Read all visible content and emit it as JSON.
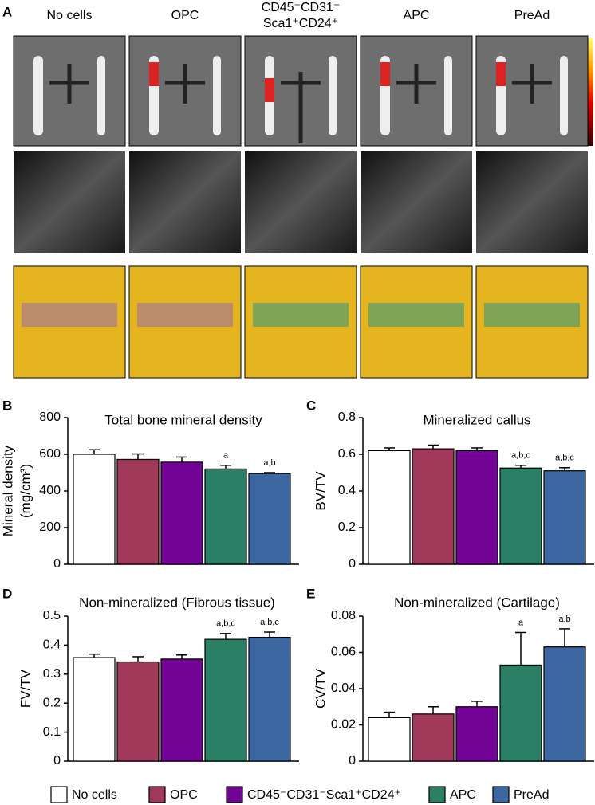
{
  "panel_labels": [
    "A",
    "B",
    "C",
    "D",
    "E"
  ],
  "panel_a": {
    "columns": [
      {
        "lines": [
          "No cells"
        ]
      },
      {
        "lines": [
          "OPC"
        ]
      },
      {
        "lines": [
          "CD45⁻CD31⁻",
          "Sca1⁺CD24⁺"
        ]
      },
      {
        "lines": [
          "APC"
        ]
      },
      {
        "lines": [
          "PreAd"
        ]
      }
    ]
  },
  "legend": [
    {
      "name": "No cells",
      "color": "#ffffff"
    },
    {
      "name": "OPC",
      "color": "#a0395a"
    },
    {
      "name": "CD45⁻CD31⁻Sca1⁺CD24⁺",
      "color": "#720396"
    },
    {
      "name": "APC",
      "color": "#2b7f64"
    },
    {
      "name": "PreAd",
      "color": "#3d67a1"
    }
  ],
  "chart_data": [
    {
      "type": "bar",
      "title": "Total bone mineral density",
      "ylabel": [
        "Mineral density",
        "(mg/cm³)"
      ],
      "categories": [
        null,
        null,
        null,
        null,
        null
      ],
      "values": [
        600,
        572,
        557,
        520,
        495
      ],
      "errors": [
        25,
        30,
        28,
        20,
        5
      ],
      "bar_labels": [
        null,
        null,
        null,
        "a",
        "a,b"
      ],
      "ylim": [
        0,
        800
      ],
      "yticks": [
        0,
        200,
        400,
        600,
        800
      ]
    },
    {
      "type": "bar",
      "title": "Mineralized callus",
      "ylabel": [
        "BV/TV"
      ],
      "categories": [
        null,
        null,
        null,
        null,
        null
      ],
      "values": [
        0.62,
        0.63,
        0.62,
        0.525,
        0.51
      ],
      "errors": [
        0.015,
        0.02,
        0.015,
        0.015,
        0.017
      ],
      "bar_labels": [
        null,
        null,
        null,
        "a,b,c",
        "a,b,c"
      ],
      "ylim": [
        0,
        0.8
      ],
      "yticks": [
        0,
        0.2,
        0.4,
        0.6,
        0.8
      ]
    },
    {
      "type": "bar",
      "title": "Non-mineralized (Fibrous tissue)",
      "ylabel": [
        "FV/TV"
      ],
      "categories": [
        null,
        null,
        null,
        null,
        null
      ],
      "values": [
        0.357,
        0.342,
        0.352,
        0.42,
        0.427
      ],
      "errors": [
        0.012,
        0.018,
        0.014,
        0.02,
        0.018
      ],
      "bar_labels": [
        null,
        null,
        null,
        "a,b,c",
        "a,b,c"
      ],
      "ylim": [
        0,
        0.5
      ],
      "yticks": [
        0,
        0.1,
        0.2,
        0.3,
        0.4,
        0.5
      ]
    },
    {
      "type": "bar",
      "title": "Non-mineralized (Cartilage)",
      "ylabel": [
        "CV/TV"
      ],
      "categories": [
        null,
        null,
        null,
        null,
        null
      ],
      "values": [
        0.024,
        0.026,
        0.03,
        0.053,
        0.063
      ],
      "errors": [
        0.003,
        0.004,
        0.003,
        0.018,
        0.01
      ],
      "bar_labels": [
        null,
        null,
        null,
        "a",
        "a,b"
      ],
      "ylim": [
        0,
        0.08
      ],
      "yticks": [
        0,
        0.02,
        0.04,
        0.06,
        0.08
      ]
    }
  ]
}
